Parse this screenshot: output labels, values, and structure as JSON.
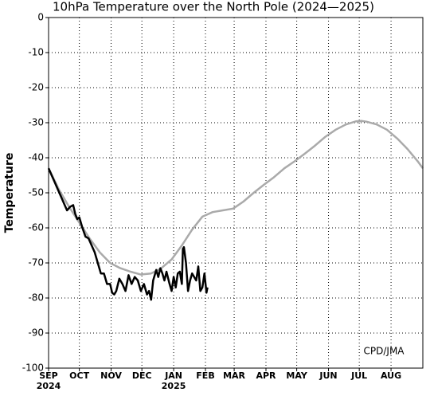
{
  "chart_data": {
    "type": "line",
    "title": "10hPa Temperature over the North Pole (2024—2025)",
    "y_label": "Temperature",
    "annotation": "CPD/JMA",
    "xlim": [
      0,
      365
    ],
    "xticks": [
      {
        "value": 0,
        "label": "SEP"
      },
      {
        "value": 30,
        "label": "OCT"
      },
      {
        "value": 61,
        "label": "NOV"
      },
      {
        "value": 91,
        "label": "DEC"
      },
      {
        "value": 122,
        "label": "JAN"
      },
      {
        "value": 153,
        "label": "FEB"
      },
      {
        "value": 181,
        "label": "MAR"
      },
      {
        "value": 212,
        "label": "APR"
      },
      {
        "value": 242,
        "label": "MAY"
      },
      {
        "value": 273,
        "label": "JUN"
      },
      {
        "value": 303,
        "label": "JUL"
      },
      {
        "value": 334,
        "label": "AUG"
      }
    ],
    "year_labels": [
      {
        "value": 0,
        "label": "2024"
      },
      {
        "value": 122,
        "label": "2025"
      }
    ],
    "ylim": [
      -100,
      0
    ],
    "yticks": [
      0,
      -10,
      -20,
      -30,
      -40,
      -50,
      -60,
      -70,
      -80,
      -90,
      -100
    ],
    "grid": true,
    "series": [
      {
        "color": "#aaaaaa",
        "x": [
          0,
          10,
          20,
          30,
          40,
          50,
          60,
          70,
          80,
          90,
          100,
          110,
          120,
          130,
          140,
          150,
          160,
          170,
          180,
          190,
          200,
          210,
          220,
          230,
          240,
          250,
          260,
          270,
          280,
          290,
          300,
          305,
          310,
          320,
          330,
          340,
          350,
          360,
          365
        ],
        "values": [
          -43,
          -49,
          -54,
          -58.5,
          -63,
          -67,
          -70,
          -71.5,
          -72.5,
          -73.3,
          -73,
          -71.5,
          -69,
          -65,
          -60.5,
          -56.8,
          -55.5,
          -55,
          -54.5,
          -52.5,
          -50,
          -47.7,
          -45.5,
          -43,
          -41,
          -38.8,
          -36.5,
          -34,
          -32,
          -30.5,
          -29.6,
          -29.5,
          -29.7,
          -30.5,
          -32,
          -34.5,
          -37.5,
          -41,
          -43
        ]
      },
      {
        "color": "#000000",
        "x": [
          0,
          3,
          6,
          9,
          12,
          15,
          18,
          21,
          24,
          26,
          28,
          30,
          33,
          36,
          39,
          42,
          45,
          48,
          51,
          54,
          57,
          60,
          62,
          64,
          66,
          69,
          72,
          75,
          78,
          81,
          84,
          87,
          90,
          93,
          96,
          98,
          100,
          102,
          105,
          107,
          109,
          111,
          113,
          115,
          118,
          120,
          122,
          124,
          126,
          128,
          130,
          131,
          132,
          134,
          136,
          138,
          140,
          142,
          144,
          146,
          148,
          150,
          152,
          154,
          155
        ],
        "values": [
          -43,
          -45,
          -47,
          -49,
          -51,
          -53,
          -55,
          -54,
          -53.5,
          -56,
          -57.5,
          -57,
          -60,
          -62.5,
          -63,
          -65,
          -67,
          -70,
          -73,
          -73,
          -76,
          -76,
          -78.5,
          -79,
          -78,
          -74.5,
          -76,
          -78,
          -73.5,
          -76,
          -74,
          -75,
          -78,
          -76,
          -79,
          -78,
          -80.5,
          -75,
          -72,
          -74,
          -71.5,
          -73,
          -75,
          -72.5,
          -76,
          -78,
          -74,
          -77,
          -73,
          -72.5,
          -76,
          -66,
          -65.5,
          -70,
          -78,
          -75,
          -73,
          -74,
          -75,
          -71,
          -78,
          -77,
          -73,
          -78.5,
          -77
        ]
      }
    ]
  }
}
